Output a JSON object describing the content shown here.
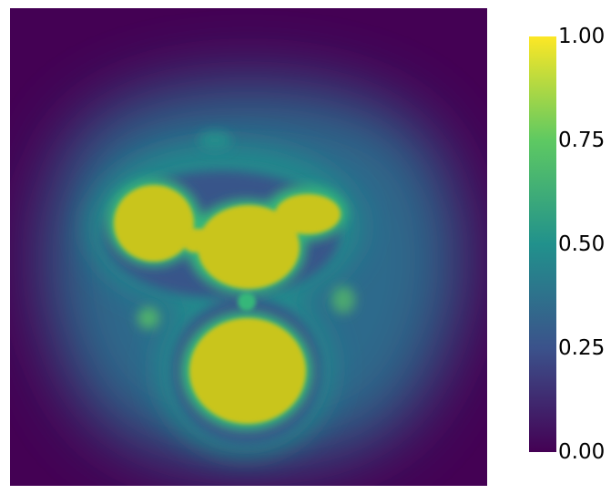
{
  "chart_data": {
    "type": "heatmap",
    "title": "",
    "xlabel": "",
    "ylabel": "",
    "colormap": "viridis",
    "value_range": [
      0,
      1
    ],
    "colorbar": {
      "placement": "right",
      "ticks": [
        "0.00",
        "0.25",
        "0.50",
        "0.75",
        "1.00"
      ],
      "tick_values": [
        0,
        0.25,
        0.5,
        0.75,
        1.0
      ]
    },
    "field_description_values": {
      "background": 0.0,
      "outer_halo": 0.3,
      "inner_halo": 0.45,
      "blob_core": 0.92
    }
  },
  "colors": {
    "colormap_stops": [
      "#440154",
      "#3b528b",
      "#21918c",
      "#5ec962",
      "#fde725"
    ],
    "background": "#440154",
    "core": "#c8c421",
    "halo": "#21918c"
  }
}
